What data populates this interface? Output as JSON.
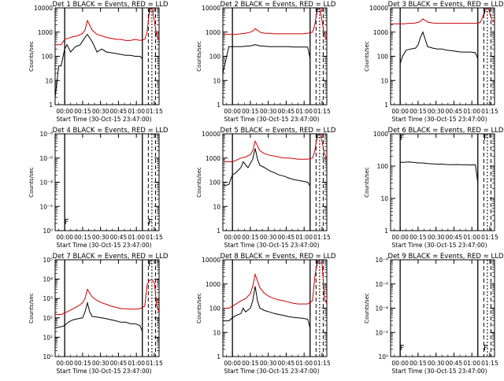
{
  "chart_data": [
    {
      "type": "line",
      "title": "Det 1 BLACK = Events, RED = LLD",
      "xlabel": "Start Time (30-Oct-15 23:47:00)",
      "ylabel": "Counts/sec",
      "ylog": true,
      "ylim": [
        1,
        10000
      ],
      "ytick_labels": [
        "1",
        "10",
        "100",
        "1000",
        "10000"
      ],
      "xtick_labels": [
        "00:00",
        "00:15",
        "00:30",
        "00:45",
        "01:00",
        "01:15"
      ],
      "xlim_min": [
        5,
        92
      ],
      "vlines_solid_min": [
        13,
        78
      ],
      "vlines_dash_min": [
        83,
        86,
        89
      ],
      "flags": [
        {
          "label": "F",
          "x_min": 84
        }
      ],
      "series": [
        {
          "color": "#000000",
          "x": [
            5,
            8,
            8.5,
            10,
            13,
            15,
            18,
            22,
            26,
            30,
            32,
            36,
            38,
            40,
            44,
            48,
            52,
            56,
            60,
            64,
            68,
            72,
            76,
            78
          ],
          "y": [
            2,
            40,
            40,
            40,
            200,
            300,
            150,
            250,
            300,
            600,
            800,
            400,
            250,
            150,
            200,
            150,
            140,
            130,
            120,
            110,
            110,
            100,
            100,
            80
          ]
        },
        {
          "color": "#cc0000",
          "x": [
            5,
            10,
            13,
            16,
            20,
            24,
            28,
            30,
            32,
            36,
            40,
            44,
            48,
            52,
            56,
            60,
            64,
            68,
            72,
            76,
            80,
            82,
            84,
            85,
            86,
            88,
            90,
            92
          ],
          "y": [
            300,
            300,
            500,
            550,
            650,
            700,
            900,
            1200,
            3000,
            1200,
            800,
            700,
            600,
            550,
            500,
            500,
            450,
            450,
            500,
            450,
            500,
            1000,
            8000,
            10000,
            12000,
            3000,
            700,
            450
          ]
        }
      ]
    },
    {
      "type": "line",
      "title": "Det 2 BLACK = Events, RED = LLD",
      "xlabel": "Start Time (30-Oct-15 23:47:00)",
      "ylabel": "Counts/sec",
      "ylog": true,
      "ylim": [
        1,
        10000
      ],
      "ytick_labels": [
        "1",
        "10",
        "100",
        "1000",
        "10000"
      ],
      "xtick_labels": [
        "00:00",
        "00:15",
        "00:30",
        "00:45",
        "01:00",
        "01:15"
      ],
      "xlim_min": [
        5,
        92
      ],
      "vlines_solid_min": [
        13,
        78
      ],
      "vlines_dash_min": [
        83,
        86,
        89
      ],
      "flags": [
        {
          "label": "F",
          "x_min": 84
        }
      ],
      "series": [
        {
          "color": "#000000",
          "x": [
            5,
            10,
            13,
            16,
            20,
            24,
            28,
            32,
            36,
            40,
            44,
            48,
            52,
            56,
            60,
            64,
            68,
            72,
            76,
            78
          ],
          "y": [
            20,
            250,
            250,
            250,
            250,
            260,
            270,
            300,
            270,
            260,
            250,
            250,
            250,
            250,
            250,
            240,
            240,
            240,
            240,
            80
          ]
        },
        {
          "color": "#cc0000",
          "x": [
            5,
            10,
            13,
            16,
            20,
            24,
            28,
            30,
            32,
            36,
            40,
            44,
            48,
            52,
            56,
            60,
            64,
            68,
            72,
            76,
            80,
            82,
            84,
            85,
            86,
            88,
            90,
            92
          ],
          "y": [
            800,
            800,
            800,
            800,
            850,
            900,
            1000,
            1100,
            1400,
            1000,
            900,
            900,
            850,
            850,
            850,
            850,
            850,
            850,
            850,
            900,
            1000,
            2000,
            9000,
            12000,
            12000,
            3000,
            700,
            500
          ]
        }
      ]
    },
    {
      "type": "line",
      "title": "Det 3 BLACK = Events, RED = LLD",
      "xlabel": "Start Time (30-Oct-15 23:47:00)",
      "ylabel": "Counts/sec",
      "ylog": true,
      "ylim": [
        1,
        10000
      ],
      "ytick_labels": [
        "1",
        "10",
        "100",
        "1000",
        "10000"
      ],
      "xtick_labels": [
        "00:00",
        "00:15",
        "00:30",
        "00:45",
        "01:00",
        "01:15"
      ],
      "xlim_min": [
        5,
        92
      ],
      "vlines_solid_min": [
        13,
        78
      ],
      "vlines_dash_min": [
        83,
        86,
        89
      ],
      "flags": [
        {
          "label": "F",
          "x_min": 84
        }
      ],
      "series": [
        {
          "color": "#000000",
          "x": [
            13,
            15,
            18,
            22,
            26,
            28,
            30,
            32,
            34,
            36,
            40,
            44,
            48,
            52,
            56,
            60,
            64,
            68,
            72,
            76,
            78
          ],
          "y": [
            50,
            100,
            180,
            200,
            220,
            300,
            600,
            1000,
            500,
            250,
            220,
            200,
            200,
            180,
            170,
            160,
            150,
            150,
            150,
            140,
            80
          ]
        },
        {
          "color": "#cc0000",
          "x": [
            5,
            10,
            13,
            16,
            20,
            24,
            28,
            30,
            32,
            36,
            40,
            44,
            48,
            52,
            56,
            60,
            64,
            68,
            72,
            76,
            80,
            82,
            84,
            85,
            86,
            88,
            90,
            92
          ],
          "y": [
            2200,
            2200,
            2200,
            2200,
            2300,
            2300,
            2500,
            2800,
            3500,
            2600,
            2400,
            2300,
            2300,
            2300,
            2300,
            2300,
            2300,
            2300,
            2300,
            2300,
            2500,
            4000,
            10000,
            14000,
            14000,
            6000,
            3000,
            2500
          ]
        }
      ]
    },
    {
      "type": "line",
      "title": "Det 4 BLACK = Events, RED = LLD",
      "xlabel": "Start Time (30-Oct-15 23:47:00)",
      "ylabel": "Counts/sec",
      "ylog": true,
      "ylim": [
        1,
        1e-08
      ],
      "ytick_labels": [
        "10⁰",
        "10⁻²",
        "10⁻⁴",
        "10⁻⁶",
        "10⁻⁸"
      ],
      "xtick_labels": [
        "00:00",
        "00:15",
        "00:30",
        "00:45",
        "01:00",
        "01:15"
      ],
      "xlim_min": [
        5,
        92
      ],
      "vlines_solid_min": [
        13,
        78
      ],
      "vlines_dash_min": [
        83,
        86,
        89
      ],
      "flags": [
        {
          "label": "F",
          "x_min": 14
        },
        {
          "label": "F",
          "x_min": 84
        }
      ],
      "series": []
    },
    {
      "type": "line",
      "title": "Det 5 BLACK = Events, RED = LLD",
      "xlabel": "Start Time (30-Oct-15 23:47:00)",
      "ylabel": "Counts/sec",
      "ylog": true,
      "ylim": [
        1,
        10000
      ],
      "ytick_labels": [
        "1",
        "10",
        "100",
        "1000",
        "10000"
      ],
      "xtick_labels": [
        "00:00",
        "00:15",
        "00:30",
        "00:45",
        "01:00",
        "01:15"
      ],
      "xlim_min": [
        5,
        92
      ],
      "vlines_solid_min": [
        13,
        78
      ],
      "vlines_dash_min": [
        83,
        86,
        89
      ],
      "flags": [
        {
          "label": "F",
          "x_min": 84
        }
      ],
      "series": [
        {
          "color": "#000000",
          "x": [
            5,
            10,
            13,
            16,
            20,
            22,
            26,
            28,
            30,
            32,
            34,
            36,
            40,
            44,
            48,
            52,
            56,
            60,
            64,
            68,
            72,
            76,
            78
          ],
          "y": [
            70,
            80,
            200,
            250,
            400,
            700,
            400,
            600,
            900,
            2500,
            900,
            500,
            400,
            300,
            250,
            200,
            180,
            150,
            130,
            120,
            110,
            100,
            70
          ]
        },
        {
          "color": "#cc0000",
          "x": [
            5,
            10,
            13,
            16,
            20,
            24,
            28,
            30,
            32,
            36,
            40,
            44,
            48,
            52,
            56,
            60,
            64,
            68,
            72,
            76,
            80,
            82,
            84,
            85,
            86,
            88,
            90,
            92
          ],
          "y": [
            700,
            700,
            700,
            800,
            1000,
            1100,
            1400,
            2000,
            5000,
            2000,
            1500,
            1300,
            1200,
            1100,
            1000,
            1000,
            950,
            900,
            900,
            900,
            1000,
            2000,
            9000,
            12000,
            12000,
            5000,
            1500,
            900
          ]
        }
      ]
    },
    {
      "type": "line",
      "title": "Det 6 BLACK = Events, RED = LLD",
      "xlabel": "Start Time (30-Oct-15 23:47:00)",
      "ylabel": "Counts/sec",
      "ylog": true,
      "ylim": [
        1,
        1000
      ],
      "ytick_labels": [
        "1",
        "10",
        "100",
        "1000"
      ],
      "xtick_labels": [
        "00:00",
        "00:15",
        "00:30",
        "00:45",
        "01:00",
        "01:15"
      ],
      "xlim_min": [
        5,
        92
      ],
      "vlines_solid_min": [
        13,
        78
      ],
      "vlines_dash_min": [
        83,
        86,
        89
      ],
      "flags": [
        {
          "label": "F",
          "x_min": 14
        },
        {
          "label": "F",
          "x_min": 84
        }
      ],
      "series": [
        {
          "color": "#000000",
          "x": [
            13,
            16,
            20,
            24,
            28,
            32,
            36,
            40,
            44,
            48,
            52,
            56,
            60,
            64,
            68,
            72,
            76,
            78
          ],
          "y": [
            130,
            130,
            135,
            130,
            125,
            125,
            120,
            118,
            115,
            115,
            112,
            110,
            112,
            110,
            110,
            108,
            110,
            30
          ]
        }
      ]
    },
    {
      "type": "line",
      "title": "Det 7 BLACK = Events, RED = LLD",
      "xlabel": "Start Time (30-Oct-15 23:47:00)",
      "ylabel": "Counts/sec",
      "ylog": true,
      "ylim": [
        1,
        100000
      ],
      "ytick_labels": [
        "10⁰",
        "10¹",
        "10²",
        "10³",
        "10⁴",
        "10⁵"
      ],
      "xtick_labels": [
        "00:00",
        "00:15",
        "00:30",
        "00:45",
        "01:00",
        "01:15"
      ],
      "xlim_min": [
        5,
        92
      ],
      "vlines_solid_min": [
        13,
        78
      ],
      "vlines_dash_min": [
        83,
        86,
        89
      ],
      "flags": [
        {
          "label": "F",
          "x_min": 84
        }
      ],
      "series": [
        {
          "color": "#000000",
          "x": [
            5,
            10,
            13,
            16,
            20,
            24,
            28,
            30,
            32,
            34,
            36,
            40,
            44,
            48,
            52,
            56,
            60,
            64,
            68,
            72,
            76,
            78
          ],
          "y": [
            30,
            35,
            40,
            60,
            80,
            90,
            100,
            200,
            600,
            200,
            120,
            110,
            100,
            90,
            80,
            70,
            60,
            60,
            50,
            50,
            40,
            20
          ]
        },
        {
          "color": "#cc0000",
          "x": [
            5,
            10,
            13,
            16,
            20,
            24,
            28,
            30,
            32,
            36,
            40,
            44,
            48,
            52,
            56,
            60,
            64,
            68,
            72,
            76,
            80,
            82,
            84,
            86,
            88,
            89,
            90,
            92
          ],
          "y": [
            150,
            150,
            180,
            220,
            300,
            400,
            600,
            1000,
            3000,
            1200,
            800,
            600,
            500,
            400,
            350,
            300,
            300,
            280,
            280,
            300,
            400,
            5000,
            9000,
            9000,
            7000,
            2000,
            400,
            200
          ]
        }
      ]
    },
    {
      "type": "line",
      "title": "Det 8 BLACK = Events, RED = LLD",
      "xlabel": "Start Time (30-Oct-15 23:47:00)",
      "ylabel": "Counts/sec",
      "ylog": true,
      "ylim": [
        1,
        10000
      ],
      "ytick_labels": [
        "1",
        "10",
        "100",
        "1000",
        "10000"
      ],
      "xtick_labels": [
        "00:00",
        "00:15",
        "00:30",
        "00:45",
        "01:00",
        "01:15"
      ],
      "xlim_min": [
        5,
        92
      ],
      "vlines_solid_min": [
        13,
        78
      ],
      "vlines_dash_min": [
        83,
        86,
        89
      ],
      "flags": [
        {
          "label": "F",
          "x_min": 84
        }
      ],
      "series": [
        {
          "color": "#000000",
          "x": [
            5,
            10,
            13,
            16,
            20,
            22,
            24,
            28,
            30,
            32,
            34,
            36,
            40,
            44,
            48,
            52,
            56,
            60,
            64,
            68,
            72,
            76,
            78
          ],
          "y": [
            30,
            30,
            40,
            50,
            60,
            100,
            70,
            100,
            200,
            800,
            200,
            100,
            80,
            70,
            60,
            55,
            50,
            45,
            42,
            40,
            38,
            35,
            15
          ]
        },
        {
          "color": "#cc0000",
          "x": [
            5,
            10,
            13,
            16,
            20,
            24,
            28,
            30,
            32,
            36,
            40,
            44,
            48,
            52,
            56,
            60,
            64,
            68,
            72,
            76,
            80,
            82,
            84,
            86,
            88,
            89,
            90,
            92
          ],
          "y": [
            100,
            100,
            120,
            150,
            200,
            250,
            400,
            800,
            2500,
            700,
            400,
            300,
            250,
            220,
            200,
            180,
            160,
            150,
            150,
            150,
            200,
            2000,
            8000,
            8000,
            7000,
            1500,
            250,
            150
          ]
        }
      ]
    },
    {
      "type": "line",
      "title": "Det 9 BLACK = Events, RED = LLD",
      "xlabel": "Start Time (30-Oct-15 23:47:00)",
      "ylabel": "Counts/sec",
      "ylog": true,
      "ylim": [
        1,
        1e-08
      ],
      "ytick_labels": [
        "10⁰",
        "10⁻²",
        "10⁻⁴",
        "10⁻⁶",
        "10⁻⁸"
      ],
      "xtick_labels": [
        "00:00",
        "00:15",
        "00:30",
        "00:45",
        "01:00",
        "01:15"
      ],
      "xlim_min": [
        5,
        92
      ],
      "vlines_solid_min": [
        13,
        78
      ],
      "vlines_dash_min": [
        83,
        86,
        89
      ],
      "flags": [
        {
          "label": "F",
          "x_min": 14
        },
        {
          "label": "F",
          "x_min": 84
        }
      ],
      "series": []
    }
  ]
}
